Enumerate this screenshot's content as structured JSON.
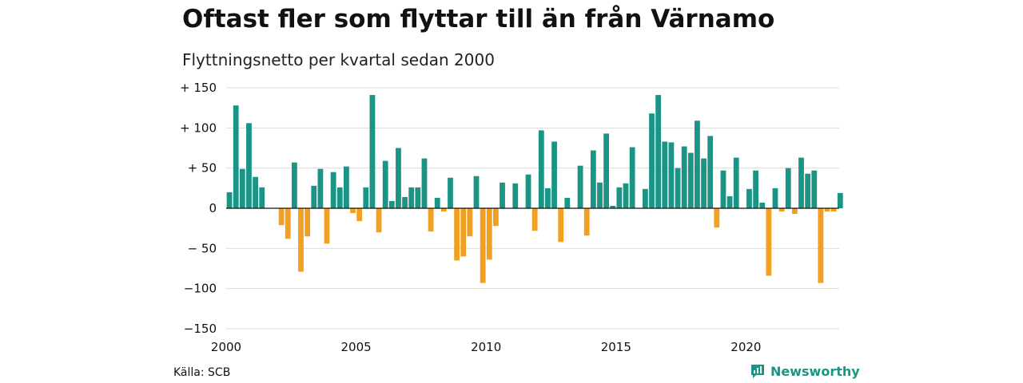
{
  "header": {
    "title": "Oftast fler som flyttar till än från Värnamo",
    "subtitle": "Flyttningsnetto per kvartal sedan 2000"
  },
  "footer": {
    "source": "Källa: SCB",
    "brand": "Newsworthy"
  },
  "colors": {
    "positive": "#1b9486",
    "negative": "#f2a024",
    "grid": "#dcdcdc",
    "axis": "#111111"
  },
  "chart_data": {
    "type": "bar",
    "title": "Oftast fler som flyttar till än från Värnamo",
    "subtitle": "Flyttningsnetto per kvartal sedan 2000",
    "xlabel": "",
    "ylabel": "",
    "start": "2000-Q1",
    "categories": [
      "2000-Q1",
      "2000-Q2",
      "2000-Q3",
      "2000-Q4",
      "2001-Q1",
      "2001-Q2",
      "2001-Q3",
      "2001-Q4",
      "2002-Q1",
      "2002-Q2",
      "2002-Q3",
      "2002-Q4",
      "2003-Q1",
      "2003-Q2",
      "2003-Q3",
      "2003-Q4",
      "2004-Q1",
      "2004-Q2",
      "2004-Q3",
      "2004-Q4",
      "2005-Q1",
      "2005-Q2",
      "2005-Q3",
      "2005-Q4",
      "2006-Q1",
      "2006-Q2",
      "2006-Q3",
      "2006-Q4",
      "2007-Q1",
      "2007-Q2",
      "2007-Q3",
      "2007-Q4",
      "2008-Q1",
      "2008-Q2",
      "2008-Q3",
      "2008-Q4",
      "2009-Q1",
      "2009-Q2",
      "2009-Q3",
      "2009-Q4",
      "2010-Q1",
      "2010-Q2",
      "2010-Q3",
      "2010-Q4",
      "2011-Q1",
      "2011-Q2",
      "2011-Q3",
      "2011-Q4",
      "2012-Q1",
      "2012-Q2",
      "2012-Q3",
      "2012-Q4",
      "2013-Q1",
      "2013-Q2",
      "2013-Q3",
      "2013-Q4",
      "2014-Q1",
      "2014-Q2",
      "2014-Q3",
      "2014-Q4",
      "2015-Q1",
      "2015-Q2",
      "2015-Q3",
      "2015-Q4",
      "2016-Q1",
      "2016-Q2",
      "2016-Q3",
      "2016-Q4",
      "2017-Q1",
      "2017-Q2",
      "2017-Q3",
      "2017-Q4",
      "2018-Q1",
      "2018-Q2",
      "2018-Q3",
      "2018-Q4",
      "2019-Q1",
      "2019-Q2",
      "2019-Q3",
      "2019-Q4",
      "2020-Q1",
      "2020-Q2",
      "2020-Q3",
      "2020-Q4",
      "2021-Q1",
      "2021-Q2",
      "2021-Q3",
      "2021-Q4",
      "2022-Q1",
      "2022-Q2",
      "2022-Q3",
      "2022-Q4",
      "2023-Q1",
      "2023-Q2",
      "2023-Q3"
    ],
    "values": [
      20,
      128,
      49,
      106,
      39,
      26,
      0,
      0,
      -21,
      -38,
      57,
      -79,
      -35,
      28,
      49,
      -44,
      45,
      26,
      52,
      -6,
      -16,
      26,
      141,
      -30,
      59,
      9,
      75,
      14,
      26,
      26,
      62,
      -29,
      13,
      -4,
      38,
      -65,
      -60,
      -35,
      40,
      -93,
      -64,
      -22,
      32,
      0,
      31,
      0,
      42,
      -28,
      97,
      25,
      83,
      -42,
      13,
      0,
      53,
      -34,
      72,
      32,
      93,
      3,
      26,
      31,
      76,
      0,
      24,
      118,
      141,
      83,
      82,
      50,
      77,
      69,
      109,
      62,
      90,
      -24,
      47,
      15,
      63,
      0,
      24,
      47,
      7,
      -84,
      25,
      -4,
      50,
      -7,
      63,
      43,
      47,
      -93,
      -4,
      -4,
      19
    ],
    "ylim": [
      -150,
      150
    ],
    "yticks": [
      150,
      100,
      50,
      0,
      -50,
      -100,
      -150
    ],
    "ytick_labels": [
      "+ 150",
      "+ 100",
      "+  50",
      "0",
      "− 50",
      "−100",
      "−150"
    ],
    "xticks": [
      "2000",
      "2005",
      "2010",
      "2015",
      "2020"
    ],
    "grid": true,
    "legend": "none"
  }
}
